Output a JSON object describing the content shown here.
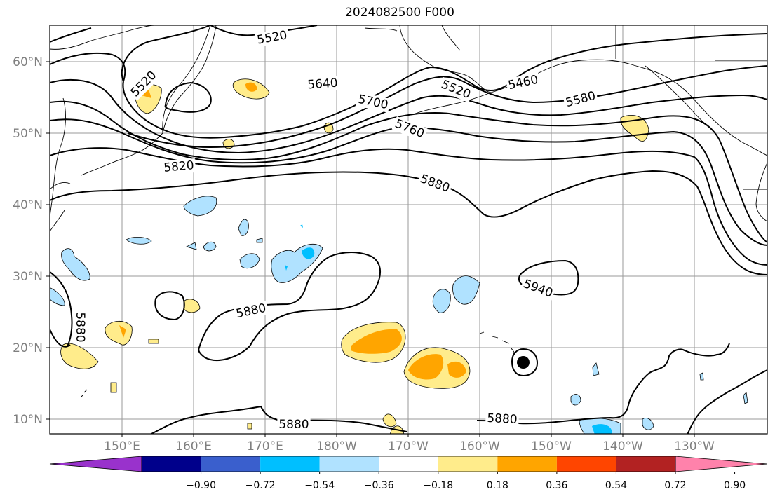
{
  "title": "2024082500 F000",
  "lat_labels": [
    "60°N",
    "50°N",
    "40°N",
    "30°N",
    "20°N",
    "10°N"
  ],
  "lon_labels": [
    "150°E",
    "160°E",
    "170°E",
    "180°W",
    "170°W",
    "160°W",
    "150°W",
    "140°W",
    "130°W"
  ],
  "contour_labels": [
    "5520",
    "5520",
    "5520",
    "5460",
    "5580",
    "5640",
    "5700",
    "5760",
    "5820",
    "5880",
    "5880",
    "5880",
    "5940",
    "5880",
    "5880"
  ],
  "colorbar": {
    "tick_labels": [
      "−0.90",
      "−0.72",
      "−0.54",
      "−0.36",
      "−0.18",
      "0.18",
      "0.36",
      "0.54",
      "0.72",
      "0.90"
    ],
    "colors": [
      "#9932CC",
      "#00008B",
      "#3A5FCD",
      "#00BFFF",
      "#B0E2FF",
      "#FFFFFF",
      "#FFEC8B",
      "#FFA500",
      "#FF4500",
      "#B22222",
      "#FF82AB"
    ]
  }
}
